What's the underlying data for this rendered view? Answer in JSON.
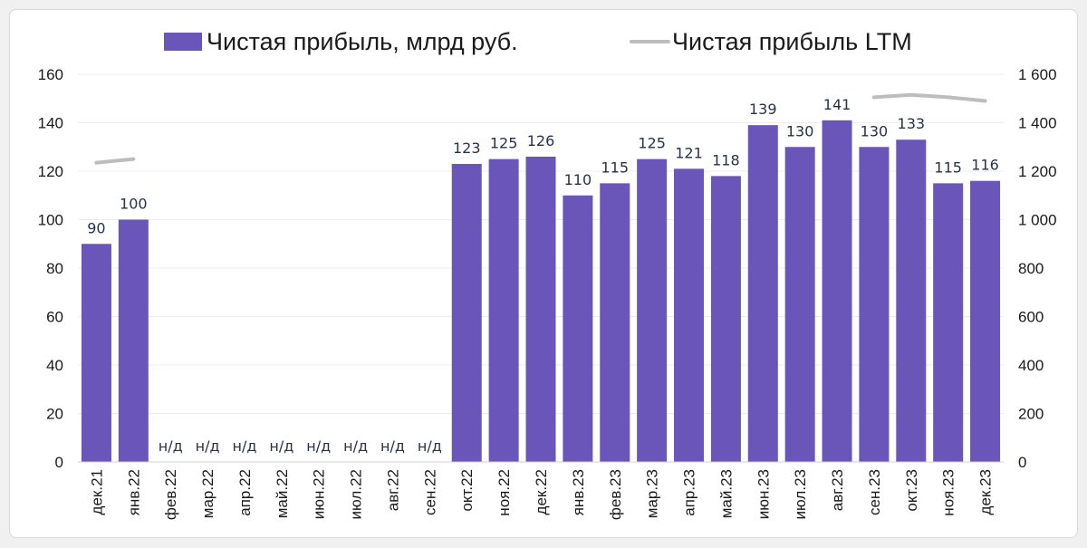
{
  "colors": {
    "bar": "#6a55b9",
    "ltm_line": "#bdbdbd",
    "grid": "#ececec",
    "background": "#ffffff"
  },
  "chart_data": {
    "type": "bar",
    "legend": {
      "position": "top",
      "bar_series_label": "Чистая прибыль, млрд руб.",
      "line_series_label": "Чистая прибыль LTM"
    },
    "categories": [
      "дек.21",
      "янв.22",
      "фев.22",
      "мар.22",
      "апр.22",
      "май.22",
      "июн.22",
      "июл.22",
      "авг.22",
      "сен.22",
      "окт.22",
      "ноя.22",
      "дек.22",
      "янв.23",
      "фев.23",
      "мар.23",
      "апр.23",
      "май.23",
      "июн.23",
      "июл.23",
      "авг.23",
      "сен.23",
      "окт.23",
      "ноя.23",
      "дек.23"
    ],
    "series": [
      {
        "name": "Чистая прибыль, млрд руб.",
        "axis": "left",
        "values": [
          90,
          100,
          null,
          null,
          null,
          null,
          null,
          null,
          null,
          null,
          123,
          125,
          126,
          110,
          115,
          125,
          121,
          118,
          139,
          130,
          141,
          130,
          133,
          115,
          116
        ],
        "labels": [
          "90",
          "100",
          "н/д",
          "н/д",
          "н/д",
          "н/д",
          "н/д",
          "н/д",
          "н/д",
          "н/д",
          "123",
          "125",
          "126",
          "110",
          "115",
          "125",
          "121",
          "118",
          "139",
          "130",
          "141",
          "130",
          "133",
          "115",
          "116"
        ]
      },
      {
        "name": "Чистая прибыль LTM",
        "axis": "right",
        "type": "line",
        "values": [
          1235,
          1250,
          null,
          null,
          null,
          null,
          null,
          null,
          null,
          null,
          null,
          null,
          null,
          null,
          null,
          null,
          null,
          null,
          null,
          null,
          null,
          1505,
          1515,
          1505,
          1490
        ]
      }
    ],
    "y_left": {
      "ylim": [
        0,
        160
      ],
      "ticks": [
        "0",
        "20",
        "40",
        "60",
        "80",
        "100",
        "120",
        "140",
        "160"
      ]
    },
    "y_right": {
      "ylim": [
        0,
        1600
      ],
      "ticks": [
        "0",
        "200",
        "400",
        "600",
        "800",
        "1 000",
        "1 200",
        "1 400",
        "1 600"
      ]
    },
    "grid": true
  }
}
